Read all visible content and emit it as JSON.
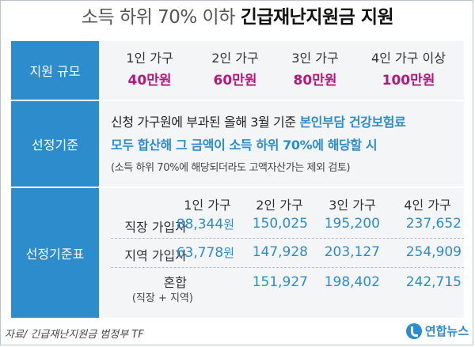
{
  "title": {
    "prefix": "소득 하위 70% 이하",
    "main": "긴급재난지원금 지원"
  },
  "scale": {
    "label": "지원 규모",
    "items": [
      {
        "household": "1인 가구",
        "amount": "40만원"
      },
      {
        "household": "2인 가구",
        "amount": "60만원"
      },
      {
        "household": "3인 가구",
        "amount": "80만원"
      },
      {
        "household": "4인 가구 이상",
        "amount": "100만원"
      }
    ]
  },
  "criteria": {
    "label": "선정기준",
    "line1_plain": "신청 가구원에 부과된 올해 3월 기준 ",
    "line1_highlight": "본인부담 건강보험료",
    "line2_highlight": "모두 합산해 그 금액이 소득 하위 70%에 해당할 시",
    "note": "(소득 하위 70%에 해당되더라도 고액자산가는 제외 검토)"
  },
  "table": {
    "label": "선정기준표",
    "columns": [
      "1인 가구",
      "2인 가구",
      "3인 가구",
      "4인 가구"
    ],
    "rows": [
      {
        "name": "직장 가입자",
        "values": [
          "88,344",
          "150,025",
          "195,200",
          "237,652"
        ]
      },
      {
        "name": "지역 가입자",
        "values": [
          "63,778",
          "147,928",
          "203,127",
          "254,909"
        ]
      },
      {
        "name": "혼합",
        "sub": "(직장 + 지역)",
        "values": [
          "",
          "151,927",
          "198,402",
          "242,715"
        ]
      }
    ],
    "unit": "원"
  },
  "source": "자료/ 긴급재난지원금 범정부 TF",
  "logo": "연합뉴스",
  "colors": {
    "accent_blue": "#2d8ccb",
    "amount_magenta": "#b5177a"
  }
}
